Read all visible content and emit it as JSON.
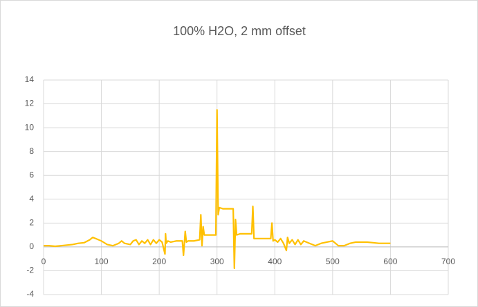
{
  "chart_data": {
    "type": "line",
    "title": "100% H2O, 2 mm offset",
    "x": [
      0,
      10,
      20,
      30,
      40,
      50,
      60,
      70,
      80,
      85,
      90,
      100,
      110,
      120,
      130,
      135,
      140,
      150,
      155,
      160,
      165,
      170,
      175,
      180,
      185,
      190,
      195,
      200,
      205,
      210,
      211,
      212,
      215,
      220,
      230,
      240,
      242,
      245,
      247,
      250,
      260,
      270,
      272,
      274,
      276,
      278,
      290,
      298,
      300,
      302,
      304,
      310,
      320,
      328,
      330,
      332,
      334,
      340,
      350,
      360,
      362,
      364,
      370,
      380,
      393,
      395,
      397,
      400,
      405,
      410,
      415,
      420,
      422,
      425,
      430,
      435,
      440,
      445,
      450,
      460,
      470,
      480,
      490,
      500,
      510,
      520,
      530,
      540,
      550,
      560,
      570,
      580,
      590,
      600
    ],
    "series": [
      {
        "color": "#ffc000",
        "values": [
          0.1,
          0.1,
          0.05,
          0.1,
          0.15,
          0.2,
          0.3,
          0.35,
          0.6,
          0.8,
          0.7,
          0.5,
          0.2,
          0.1,
          0.3,
          0.5,
          0.3,
          0.2,
          0.5,
          0.6,
          0.2,
          0.5,
          0.3,
          0.6,
          0.2,
          0.6,
          0.3,
          0.6,
          0.4,
          -0.6,
          1.1,
          0.3,
          0.5,
          0.4,
          0.5,
          0.5,
          -0.7,
          1.3,
          0.4,
          0.5,
          0.5,
          0.6,
          2.7,
          0.1,
          1.7,
          1.0,
          1.0,
          1.0,
          11.5,
          2.7,
          3.3,
          3.2,
          3.2,
          3.2,
          -1.8,
          2.3,
          1.0,
          1.1,
          1.1,
          1.1,
          3.4,
          0.7,
          0.7,
          0.7,
          0.7,
          2.0,
          0.5,
          0.6,
          0.4,
          0.7,
          0.3,
          -0.3,
          0.8,
          0.3,
          0.6,
          0.2,
          0.6,
          0.2,
          0.5,
          0.3,
          0.1,
          0.3,
          0.4,
          0.5,
          0.1,
          0.1,
          0.3,
          0.4,
          0.4,
          0.4,
          0.35,
          0.3,
          0.3,
          0.3
        ]
      }
    ],
    "xlim": [
      0,
      700
    ],
    "xticks": [
      0,
      100,
      200,
      300,
      400,
      500,
      600,
      700
    ],
    "ylim": [
      -4,
      14
    ],
    "yticks": [
      -4,
      -2,
      0,
      2,
      4,
      6,
      8,
      10,
      12,
      14
    ],
    "grid": true
  }
}
